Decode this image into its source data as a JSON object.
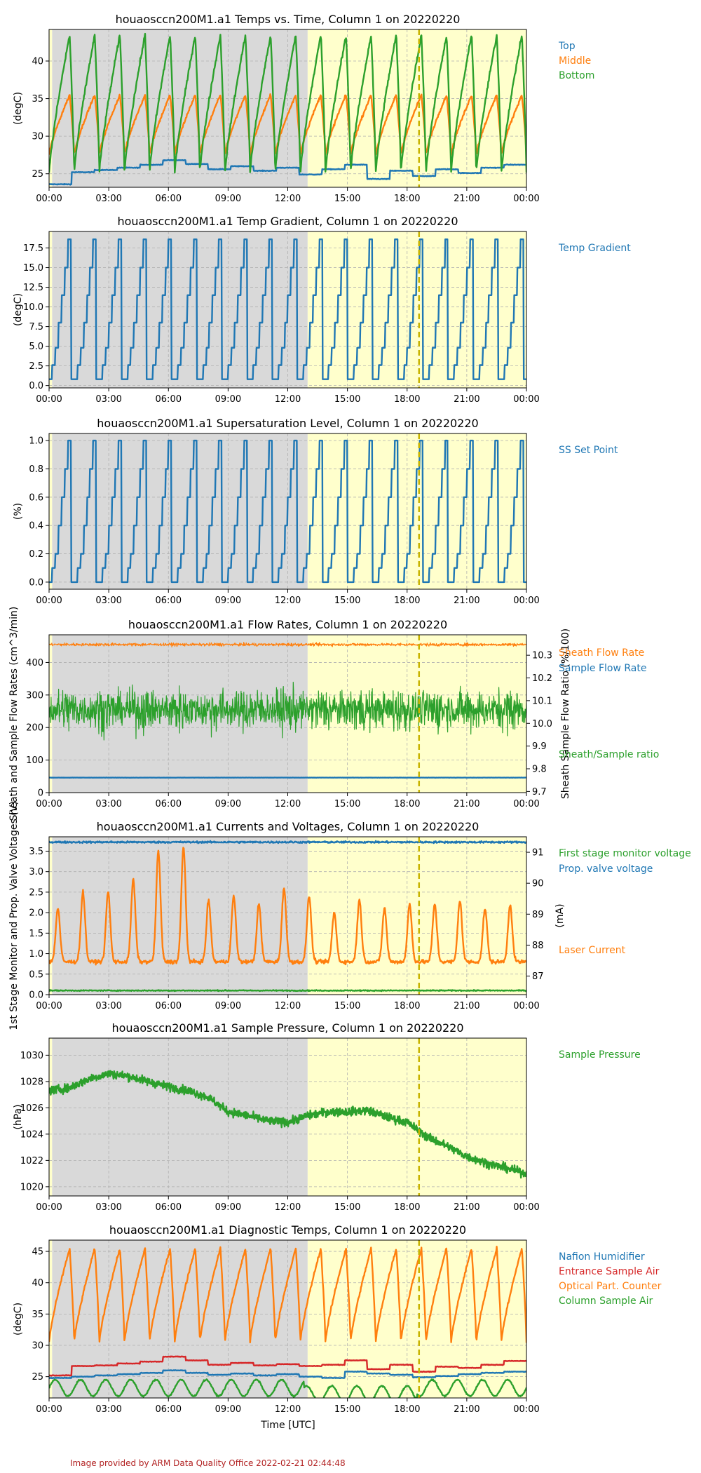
{
  "x_ticks": [
    "00:00",
    "03:00",
    "06:00",
    "09:00",
    "12:00",
    "15:00",
    "18:00",
    "21:00",
    "00:00"
  ],
  "x_axis_label": "Time [UTC]",
  "footer": "Image provided by ARM Data Quality Office 2022-02-21 02:44:48",
  "colors": {
    "night_shade": "#d9d9d9",
    "day_shade": "#ffffcc",
    "marker": "#c8b400",
    "blue": "#1f77b4",
    "orange": "#ff7f0e",
    "green": "#2ca02c",
    "red": "#d62728",
    "grid": "#b0b0b0"
  },
  "shading_hours": {
    "night": [
      0.15,
      13.0
    ],
    "day": [
      13.0,
      24.0
    ]
  },
  "marker_hour": 18.6,
  "chart_data": [
    {
      "type": "line",
      "title": "houaosccn200M1.a1 Temps vs. Time, Column 1 on 20220220",
      "ylabel": "(degC)",
      "ylim": [
        23.2,
        44.2
      ],
      "yticks": [
        25,
        30,
        35,
        40
      ],
      "ytick_labels": [
        "25",
        "30",
        "35",
        "40"
      ],
      "legend": [
        "Top",
        "Middle",
        "Bottom"
      ],
      "series": [
        {
          "name": "Top",
          "color_key": "blue",
          "shape": "blocks",
          "levels": [
            23.6,
            25.2,
            25.5,
            25.8,
            26.2,
            26.8,
            26.3,
            25.6,
            26.0,
            25.4,
            25.8,
            24.9,
            25.6,
            26.2,
            24.3,
            25.4,
            24.7,
            25.6,
            25.1,
            25.8,
            26.2
          ]
        },
        {
          "name": "Middle",
          "color_key": "orange",
          "shape": "saw",
          "base": 27.5,
          "peak": 35.5,
          "noise": 0.3
        },
        {
          "name": "Bottom",
          "color_key": "green",
          "shape": "saw",
          "base": 25.0,
          "peak": 43.5,
          "noise": 0.5
        }
      ]
    },
    {
      "type": "line",
      "title": "houaosccn200M1.a1 Temp Gradient, Column 1 on 20220220",
      "ylabel": "(degC)",
      "ylim": [
        -0.3,
        19.6
      ],
      "yticks": [
        0.0,
        2.5,
        5.0,
        7.5,
        10.0,
        12.5,
        15.0,
        17.5
      ],
      "ytick_labels": [
        "0.0",
        "2.5",
        "5.0",
        "7.5",
        "10.0",
        "12.5",
        "15.0",
        "17.5"
      ],
      "legend": [
        "Temp Gradient"
      ],
      "series": [
        {
          "name": "Temp Gradient",
          "color_key": "blue",
          "shape": "steps",
          "steps": [
            0.8,
            2.6,
            4.8,
            8.0,
            11.5,
            15.0,
            18.6
          ]
        }
      ]
    },
    {
      "type": "line",
      "title": "houaosccn200M1.a1 Supersaturation Level, Column 1 on 20220220",
      "ylabel": "(%)",
      "ylim": [
        -0.05,
        1.05
      ],
      "yticks": [
        0.0,
        0.2,
        0.4,
        0.6,
        0.8,
        1.0
      ],
      "ytick_labels": [
        "0.0",
        "0.2",
        "0.4",
        "0.6",
        "0.8",
        "1.0"
      ],
      "legend": [
        "SS Set Point"
      ],
      "series": [
        {
          "name": "SS Set Point",
          "color_key": "blue",
          "shape": "steps",
          "steps": [
            0.0,
            0.1,
            0.2,
            0.4,
            0.6,
            0.8,
            1.0
          ]
        }
      ]
    },
    {
      "type": "line",
      "title": "houaosccn200M1.a1 Flow Rates, Column 1 on 20220220",
      "ylabel": "Sheath and Sample Flow Rates (cm^3/min)",
      "ylim": [
        0,
        485
      ],
      "yticks": [
        0,
        100,
        200,
        300,
        400
      ],
      "ytick_labels": [
        "0",
        "100",
        "200",
        "300",
        "400"
      ],
      "ylabel_right": "Sheath Sample Flow Ratio (%/100)",
      "ylim_right": [
        9.695,
        10.39
      ],
      "yticks_right": [
        9.7,
        9.8,
        9.9,
        10.0,
        10.1,
        10.2,
        10.3
      ],
      "ytick_labels_right": [
        "9.7",
        "9.8",
        "9.9",
        "10.0",
        "10.1",
        "10.2",
        "10.3"
      ],
      "legend": [
        "Sheath Flow Rate",
        "Sample Flow Rate",
        "Sheath/Sample ratio"
      ],
      "series": [
        {
          "name": "Sheath Flow Rate",
          "color_key": "orange",
          "shape": "noise",
          "center": 455,
          "spread": 9
        },
        {
          "name": "Sample Flow Rate",
          "color_key": "blue",
          "shape": "flat",
          "value": 46
        },
        {
          "name": "Sheath/Sample ratio",
          "color_key": "green",
          "shape": "noise",
          "center": 255,
          "spread": 120,
          "axis": "left-scaled"
        }
      ]
    },
    {
      "type": "line",
      "title": "houaosccn200M1.a1 Currents and Voltages, Column 1 on 20220220",
      "ylabel": "1st Stage Monitor and Prop. Valve Voltages (V)",
      "ylim": [
        0,
        3.85
      ],
      "yticks": [
        0.0,
        0.5,
        1.0,
        1.5,
        2.0,
        2.5,
        3.0,
        3.5
      ],
      "ytick_labels": [
        "0.0",
        "0.5",
        "1.0",
        "1.5",
        "2.0",
        "2.5",
        "3.0",
        "3.5"
      ],
      "ylabel_right": "(mA)",
      "ylim_right": [
        86.4,
        91.5
      ],
      "yticks_right": [
        87,
        88,
        89,
        90,
        91
      ],
      "ytick_labels_right": [
        "87",
        "88",
        "89",
        "90",
        "91"
      ],
      "legend": [
        "First stage monitor voltage",
        "Prop. valve voltage",
        "Laser Current"
      ],
      "series": [
        {
          "name": "First stage monitor voltage",
          "color_key": "green",
          "shape": "flat",
          "value": 0.1
        },
        {
          "name": "Prop. valve voltage",
          "color_key": "blue",
          "shape": "flat",
          "value": 3.72
        },
        {
          "name": "Laser Current",
          "color_key": "orange",
          "shape": "spikes",
          "base": 0.8,
          "peaks": [
            2.1,
            2.5,
            2.5,
            2.8,
            3.5,
            3.6,
            2.3,
            2.4,
            2.2,
            2.6,
            2.4,
            2.0,
            2.3,
            2.1,
            2.2,
            2.2,
            2.3,
            2.1,
            2.2,
            2.4,
            2.7
          ]
        }
      ]
    },
    {
      "type": "line",
      "title": "houaosccn200M1.a1 Sample Pressure, Column 1 on 20220220",
      "ylabel": "(hPa)",
      "ylim": [
        1019.3,
        1031.3
      ],
      "yticks": [
        1020,
        1022,
        1024,
        1026,
        1028,
        1030
      ],
      "ytick_labels": [
        "1020",
        "1022",
        "1024",
        "1026",
        "1028",
        "1030"
      ],
      "legend": [
        "Sample Pressure"
      ],
      "series": [
        {
          "name": "Sample Pressure",
          "color_key": "green",
          "shape": "trend",
          "x": [
            0,
            1,
            2,
            3,
            4,
            5,
            6,
            7,
            8,
            9,
            10,
            11,
            12,
            13,
            14,
            15,
            16,
            17,
            18,
            19,
            20,
            21,
            22,
            23,
            24
          ],
          "y": [
            1027.3,
            1027.5,
            1028.2,
            1028.6,
            1028.4,
            1028.0,
            1027.6,
            1027.3,
            1026.8,
            1025.7,
            1025.4,
            1025.0,
            1024.9,
            1025.4,
            1025.7,
            1025.7,
            1025.8,
            1025.3,
            1024.9,
            1023.8,
            1023.1,
            1022.3,
            1021.8,
            1021.4,
            1021.0
          ],
          "noise": 0.55
        }
      ]
    },
    {
      "type": "line",
      "title": "houaosccn200M1.a1 Diagnostic Temps, Column 1 on 20220220",
      "ylabel": "(degC)",
      "ylim": [
        21.6,
        46.8
      ],
      "yticks": [
        25,
        30,
        35,
        40,
        45
      ],
      "ytick_labels": [
        "25",
        "30",
        "35",
        "40",
        "45"
      ],
      "legend": [
        "Nafion Humidifier",
        "Entrance Sample Air",
        "Optical Part. Counter",
        "Column Sample Air"
      ],
      "series": [
        {
          "name": "Nafion Humidifier",
          "color_key": "blue",
          "shape": "blocks",
          "levels": [
            24.8,
            25.0,
            25.2,
            25.4,
            25.6,
            26.0,
            25.6,
            25.3,
            25.5,
            25.2,
            25.4,
            25.0,
            24.8,
            25.8,
            25.5,
            25.3,
            24.9,
            25.1,
            25.4,
            25.6,
            25.8
          ]
        },
        {
          "name": "Entrance Sample Air",
          "color_key": "red",
          "shape": "blocks",
          "levels": [
            25.2,
            26.7,
            26.8,
            27.1,
            27.4,
            28.2,
            27.6,
            26.9,
            27.2,
            26.8,
            27.0,
            26.7,
            26.9,
            27.6,
            26.2,
            26.9,
            25.8,
            26.6,
            26.4,
            26.9,
            27.5
          ]
        },
        {
          "name": "Optical Part. Counter",
          "color_key": "orange",
          "shape": "saw",
          "base": 30.5,
          "peak": 45.5,
          "noise": 0.4
        },
        {
          "name": "Column Sample Air",
          "color_key": "green",
          "shape": "waves",
          "base": 23.2,
          "amp": 1.3,
          "dip_start": 12.8,
          "dip_end": 18.5,
          "dip": 1.0
        }
      ]
    }
  ]
}
